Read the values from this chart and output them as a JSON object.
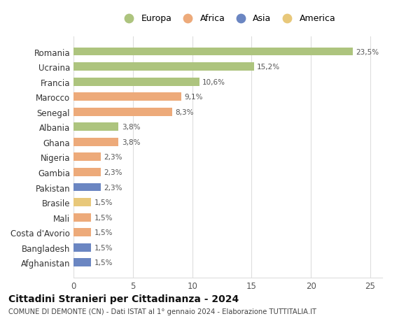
{
  "countries": [
    "Romania",
    "Ucraina",
    "Francia",
    "Marocco",
    "Senegal",
    "Albania",
    "Ghana",
    "Nigeria",
    "Gambia",
    "Pakistan",
    "Brasile",
    "Mali",
    "Costa d'Avorio",
    "Bangladesh",
    "Afghanistan"
  ],
  "values": [
    23.5,
    15.2,
    10.6,
    9.1,
    8.3,
    3.8,
    3.8,
    2.3,
    2.3,
    2.3,
    1.5,
    1.5,
    1.5,
    1.5,
    1.5
  ],
  "labels": [
    "23,5%",
    "15,2%",
    "10,6%",
    "9,1%",
    "8,3%",
    "3,8%",
    "3,8%",
    "2,3%",
    "2,3%",
    "2,3%",
    "1,5%",
    "1,5%",
    "1,5%",
    "1,5%",
    "1,5%"
  ],
  "colors": [
    "#adc47e",
    "#adc47e",
    "#adc47e",
    "#edaa7a",
    "#edaa7a",
    "#adc47e",
    "#edaa7a",
    "#edaa7a",
    "#edaa7a",
    "#6b86c2",
    "#e8c87a",
    "#edaa7a",
    "#edaa7a",
    "#6b86c2",
    "#6b86c2"
  ],
  "continent_colors": {
    "Europa": "#adc47e",
    "Africa": "#edaa7a",
    "Asia": "#6b86c2",
    "America": "#e8c87a"
  },
  "xlim": [
    0,
    26
  ],
  "xticks": [
    0,
    5,
    10,
    15,
    20,
    25
  ],
  "title": "Cittadini Stranieri per Cittadinanza - 2024",
  "subtitle": "COMUNE DI DEMONTE (CN) - Dati ISTAT al 1° gennaio 2024 - Elaborazione TUTTITALIA.IT",
  "background_color": "#ffffff",
  "grid_color": "#dddddd"
}
